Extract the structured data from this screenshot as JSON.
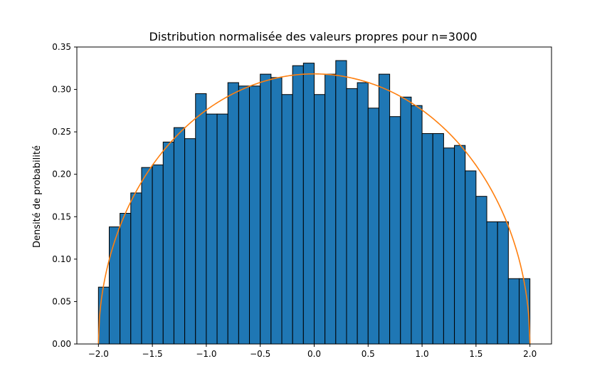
{
  "chart_data": {
    "type": "bar",
    "title": "Distribution normalisée des valeurs propres pour n=3000",
    "xlabel": "",
    "ylabel": "Densité de probabilité",
    "xlim": [
      -2.2,
      2.2
    ],
    "ylim": [
      0.0,
      0.35
    ],
    "xticks": [
      -2.0,
      -1.5,
      -1.0,
      -0.5,
      0.0,
      0.5,
      1.0,
      1.5,
      2.0
    ],
    "xtick_labels": [
      "−2.0",
      "−1.5",
      "−1.0",
      "−0.5",
      "0.0",
      "0.5",
      "1.0",
      "1.5",
      "2.0"
    ],
    "yticks": [
      0.0,
      0.05,
      0.1,
      0.15,
      0.2,
      0.25,
      0.3,
      0.35
    ],
    "ytick_labels": [
      "0.00",
      "0.05",
      "0.10",
      "0.15",
      "0.20",
      "0.25",
      "0.30",
      "0.35"
    ],
    "grid": false,
    "legend": "none",
    "histogram": {
      "bin_start": -2.0,
      "bin_width": 0.1,
      "values": [
        0.067,
        0.138,
        0.154,
        0.178,
        0.208,
        0.211,
        0.238,
        0.255,
        0.242,
        0.295,
        0.271,
        0.271,
        0.308,
        0.304,
        0.304,
        0.318,
        0.314,
        0.294,
        0.328,
        0.331,
        0.294,
        0.318,
        0.334,
        0.301,
        0.308,
        0.278,
        0.318,
        0.268,
        0.291,
        0.281,
        0.248,
        0.248,
        0.231,
        0.234,
        0.204,
        0.174,
        0.144,
        0.144,
        0.077,
        0.077
      ],
      "color": "#1f77b4",
      "edge_color": "#000000"
    },
    "curve": {
      "type": "line",
      "formula": "sqrt(4 - x^2) / (2*pi)",
      "x_range": [
        -2.0,
        2.0
      ],
      "color": "#ff7f0e"
    }
  }
}
